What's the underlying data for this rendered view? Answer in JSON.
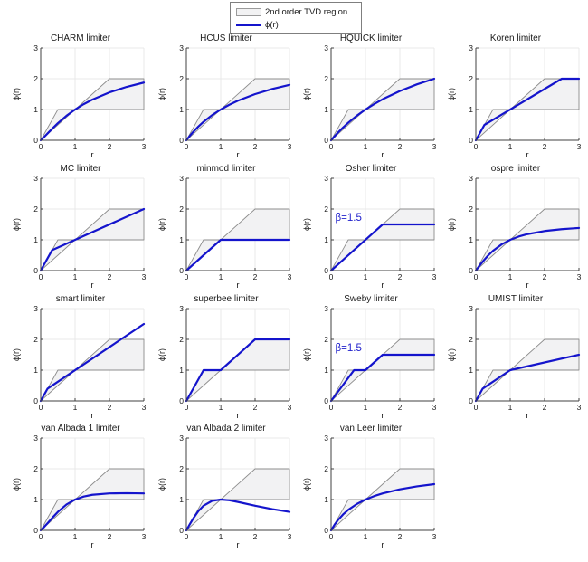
{
  "figure": {
    "background": "#ffffff",
    "legend": {
      "items": [
        {
          "swatch": "region",
          "label": "2nd order TVD region"
        },
        {
          "swatch": "line",
          "label": "ϕ(r)"
        }
      ]
    },
    "colors": {
      "curve": "#1414cc",
      "region_fill": "#f2f2f3",
      "region_edge": "#8c8c8c",
      "grid": "#e9e9e9",
      "axis": "#404040",
      "annotation": "#2222cc",
      "text": "#1a1a1a"
    }
  },
  "chart_data": {
    "type": "line",
    "title": "",
    "xlabel": "r",
    "ylabel": "ϕ(r)",
    "xlim": [
      0,
      3
    ],
    "ylim": [
      0,
      3
    ],
    "xticks": [
      0,
      1,
      2,
      3
    ],
    "yticks": [
      0,
      1,
      2,
      3
    ],
    "grid_on": true,
    "legend_position": "top-center",
    "layout": {
      "rows": 4,
      "cols": 4,
      "count": 15
    },
    "tvd_region_polygon": [
      [
        0,
        0
      ],
      [
        0.5,
        1
      ],
      [
        1,
        1
      ],
      [
        2,
        2
      ],
      [
        3,
        2
      ],
      [
        3,
        1
      ],
      [
        1,
        1
      ]
    ],
    "plots": [
      {
        "title": "CHARM limiter",
        "points": [
          [
            0,
            0
          ],
          [
            0.1,
            0.107
          ],
          [
            0.2,
            0.222
          ],
          [
            0.35,
            0.394
          ],
          [
            0.5,
            0.556
          ],
          [
            0.75,
            0.796
          ],
          [
            1,
            1
          ],
          [
            1.25,
            1.173
          ],
          [
            1.5,
            1.32
          ],
          [
            2,
            1.556
          ],
          [
            2.5,
            1.735
          ],
          [
            3,
            1.875
          ]
        ]
      },
      {
        "title": "HCUS limiter",
        "points": [
          [
            0,
            0
          ],
          [
            0.1,
            0.143
          ],
          [
            0.2,
            0.273
          ],
          [
            0.35,
            0.447
          ],
          [
            0.5,
            0.6
          ],
          [
            0.75,
            0.818
          ],
          [
            1,
            1
          ],
          [
            1.25,
            1.154
          ],
          [
            1.5,
            1.286
          ],
          [
            2,
            1.5
          ],
          [
            2.5,
            1.667
          ],
          [
            3,
            1.8
          ]
        ]
      },
      {
        "title": "HQUICK limiter",
        "points": [
          [
            0,
            0
          ],
          [
            0.1,
            0.129
          ],
          [
            0.2,
            0.25
          ],
          [
            0.35,
            0.418
          ],
          [
            0.5,
            0.571
          ],
          [
            0.75,
            0.8
          ],
          [
            1,
            1
          ],
          [
            1.25,
            1.176
          ],
          [
            1.5,
            1.333
          ],
          [
            2,
            1.6
          ],
          [
            2.5,
            1.818
          ],
          [
            3,
            2
          ]
        ]
      },
      {
        "title": "Koren limiter",
        "points": [
          [
            0,
            0
          ],
          [
            0.25,
            0.5
          ],
          [
            2.5,
            2
          ],
          [
            3,
            2
          ]
        ]
      },
      {
        "title": "MC limiter",
        "points": [
          [
            0,
            0
          ],
          [
            0.333,
            0.667
          ],
          [
            3,
            2
          ]
        ]
      },
      {
        "title": "minmod limiter",
        "points": [
          [
            0,
            0
          ],
          [
            1,
            1
          ],
          [
            3,
            1
          ]
        ]
      },
      {
        "title": "Osher limiter",
        "annotation": "β=1.5",
        "annotation_xy": [
          0.12,
          1.62
        ],
        "points": [
          [
            0,
            0
          ],
          [
            1.5,
            1.5
          ],
          [
            3,
            1.5
          ]
        ]
      },
      {
        "title": "ospre limiter",
        "points": [
          [
            0,
            0
          ],
          [
            0.1,
            0.149
          ],
          [
            0.2,
            0.29
          ],
          [
            0.35,
            0.481
          ],
          [
            0.5,
            0.643
          ],
          [
            0.75,
            0.851
          ],
          [
            1,
            1
          ],
          [
            1.25,
            1.107
          ],
          [
            1.5,
            1.184
          ],
          [
            2,
            1.286
          ],
          [
            2.5,
            1.346
          ],
          [
            3,
            1.385
          ]
        ]
      },
      {
        "title": "smart limiter",
        "points": [
          [
            0,
            0
          ],
          [
            0.2,
            0.4
          ],
          [
            3,
            2.5
          ]
        ]
      },
      {
        "title": "superbee limiter",
        "points": [
          [
            0,
            0
          ],
          [
            0.5,
            1
          ],
          [
            1,
            1
          ],
          [
            2,
            2
          ],
          [
            3,
            2
          ]
        ]
      },
      {
        "title": "Sweby limiter",
        "annotation": "β=1.5",
        "annotation_xy": [
          0.12,
          1.62
        ],
        "points": [
          [
            0,
            0
          ],
          [
            0.667,
            1
          ],
          [
            1,
            1
          ],
          [
            1.5,
            1.5
          ],
          [
            3,
            1.5
          ]
        ]
      },
      {
        "title": "UMIST limiter",
        "points": [
          [
            0,
            0
          ],
          [
            0.2,
            0.4
          ],
          [
            1,
            1
          ],
          [
            3,
            1.5
          ]
        ]
      },
      {
        "title": "van Albada 1 limiter",
        "points": [
          [
            0,
            0
          ],
          [
            0.1,
            0.109
          ],
          [
            0.2,
            0.231
          ],
          [
            0.35,
            0.421
          ],
          [
            0.5,
            0.6
          ],
          [
            0.75,
            0.84
          ],
          [
            1,
            1
          ],
          [
            1.25,
            1.098
          ],
          [
            1.5,
            1.154
          ],
          [
            2,
            1.2
          ],
          [
            2.5,
            1.207
          ],
          [
            3,
            1.2
          ]
        ]
      },
      {
        "title": "van Albada 2 limiter",
        "points": [
          [
            0,
            0
          ],
          [
            0.1,
            0.198
          ],
          [
            0.2,
            0.385
          ],
          [
            0.35,
            0.624
          ],
          [
            0.5,
            0.8
          ],
          [
            0.75,
            0.96
          ],
          [
            1,
            1
          ],
          [
            1.25,
            0.976
          ],
          [
            1.5,
            0.923
          ],
          [
            2,
            0.8
          ],
          [
            2.5,
            0.69
          ],
          [
            3,
            0.6
          ]
        ]
      },
      {
        "title": "van Leer limiter",
        "points": [
          [
            0,
            0
          ],
          [
            0.1,
            0.182
          ],
          [
            0.2,
            0.333
          ],
          [
            0.35,
            0.519
          ],
          [
            0.5,
            0.667
          ],
          [
            0.75,
            0.857
          ],
          [
            1,
            1
          ],
          [
            1.25,
            1.111
          ],
          [
            1.5,
            1.2
          ],
          [
            2,
            1.333
          ],
          [
            2.5,
            1.429
          ],
          [
            3,
            1.5
          ]
        ]
      }
    ]
  }
}
